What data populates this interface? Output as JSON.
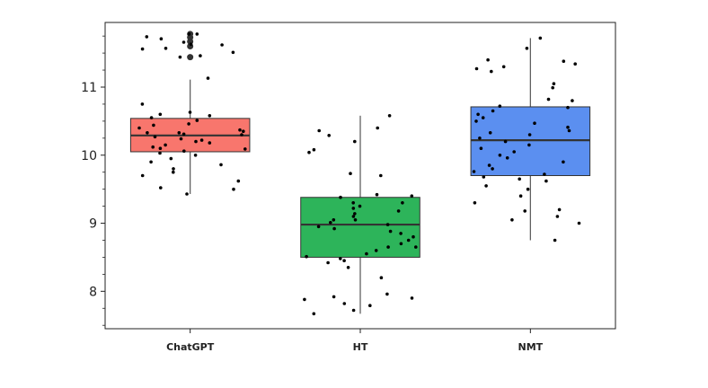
{
  "chart_data": {
    "type": "boxplot",
    "title": "",
    "xlabel": "",
    "ylabel": "",
    "categories": [
      "ChatGPT",
      "HT",
      "NMT"
    ],
    "ylim": [
      7.45,
      11.95
    ],
    "yticks": [
      8,
      9,
      10,
      11
    ],
    "ytick_labels": [
      "8",
      "9",
      "10",
      "11"
    ],
    "grid": false,
    "boxes": [
      {
        "name": "ChatGPT",
        "color": "#f8766d",
        "whisker_low": 9.43,
        "q1": 10.05,
        "median": 10.29,
        "q3": 10.54,
        "whisker_high": 11.11,
        "outliers": [
          11.44,
          11.6,
          11.67,
          11.73,
          11.78
        ],
        "points": [
          11.78,
          11.78,
          11.74,
          11.71,
          11.66,
          11.63,
          11.56,
          11.51,
          11.46,
          11.44,
          11.57,
          11.62,
          11.13,
          10.75,
          10.63,
          10.6,
          10.58,
          10.55,
          10.51,
          10.46,
          10.44,
          10.4,
          10.37,
          10.35,
          10.33,
          10.31,
          10.3,
          10.27,
          10.24,
          10.2,
          10.18,
          10.15,
          10.12,
          10.09,
          10.06,
          10.03,
          10.0,
          9.95,
          9.9,
          9.86,
          9.8,
          9.75,
          9.7,
          9.62,
          9.52,
          9.5,
          9.43,
          10.1,
          10.22,
          10.33
        ]
      },
      {
        "name": "HT",
        "color": "#2db45a",
        "whisker_low": 7.67,
        "q1": 8.5,
        "median": 8.98,
        "q3": 9.38,
        "whisker_high": 10.58,
        "outliers": [],
        "points": [
          10.58,
          10.4,
          10.36,
          10.29,
          10.2,
          10.08,
          10.04,
          9.73,
          9.7,
          9.42,
          9.4,
          9.38,
          9.3,
          9.25,
          9.22,
          9.18,
          9.14,
          9.1,
          9.05,
          9.01,
          8.98,
          8.95,
          8.92,
          8.88,
          8.85,
          8.8,
          8.75,
          8.7,
          8.65,
          8.6,
          8.55,
          8.51,
          8.48,
          8.45,
          8.42,
          8.35,
          8.2,
          7.96,
          7.92,
          7.9,
          7.88,
          7.82,
          7.79,
          7.72,
          7.67,
          8.65,
          9.05,
          9.3
        ]
      },
      {
        "name": "NMT",
        "color": "#5b8ff0",
        "whisker_low": 8.75,
        "q1": 9.7,
        "median": 10.22,
        "q3": 10.71,
        "whisker_high": 11.72,
        "outliers": [],
        "points": [
          11.72,
          11.57,
          11.4,
          11.38,
          11.34,
          11.3,
          11.27,
          11.23,
          11.05,
          10.99,
          10.82,
          10.8,
          10.72,
          10.7,
          10.65,
          10.6,
          10.55,
          10.5,
          10.47,
          10.41,
          10.36,
          10.33,
          10.3,
          10.25,
          10.2,
          10.15,
          10.1,
          10.05,
          10.0,
          9.96,
          9.9,
          9.85,
          9.8,
          9.76,
          9.72,
          9.68,
          9.65,
          9.55,
          9.5,
          9.4,
          9.3,
          9.2,
          9.18,
          9.1,
          9.05,
          9.0,
          8.75,
          9.62
        ]
      }
    ]
  }
}
